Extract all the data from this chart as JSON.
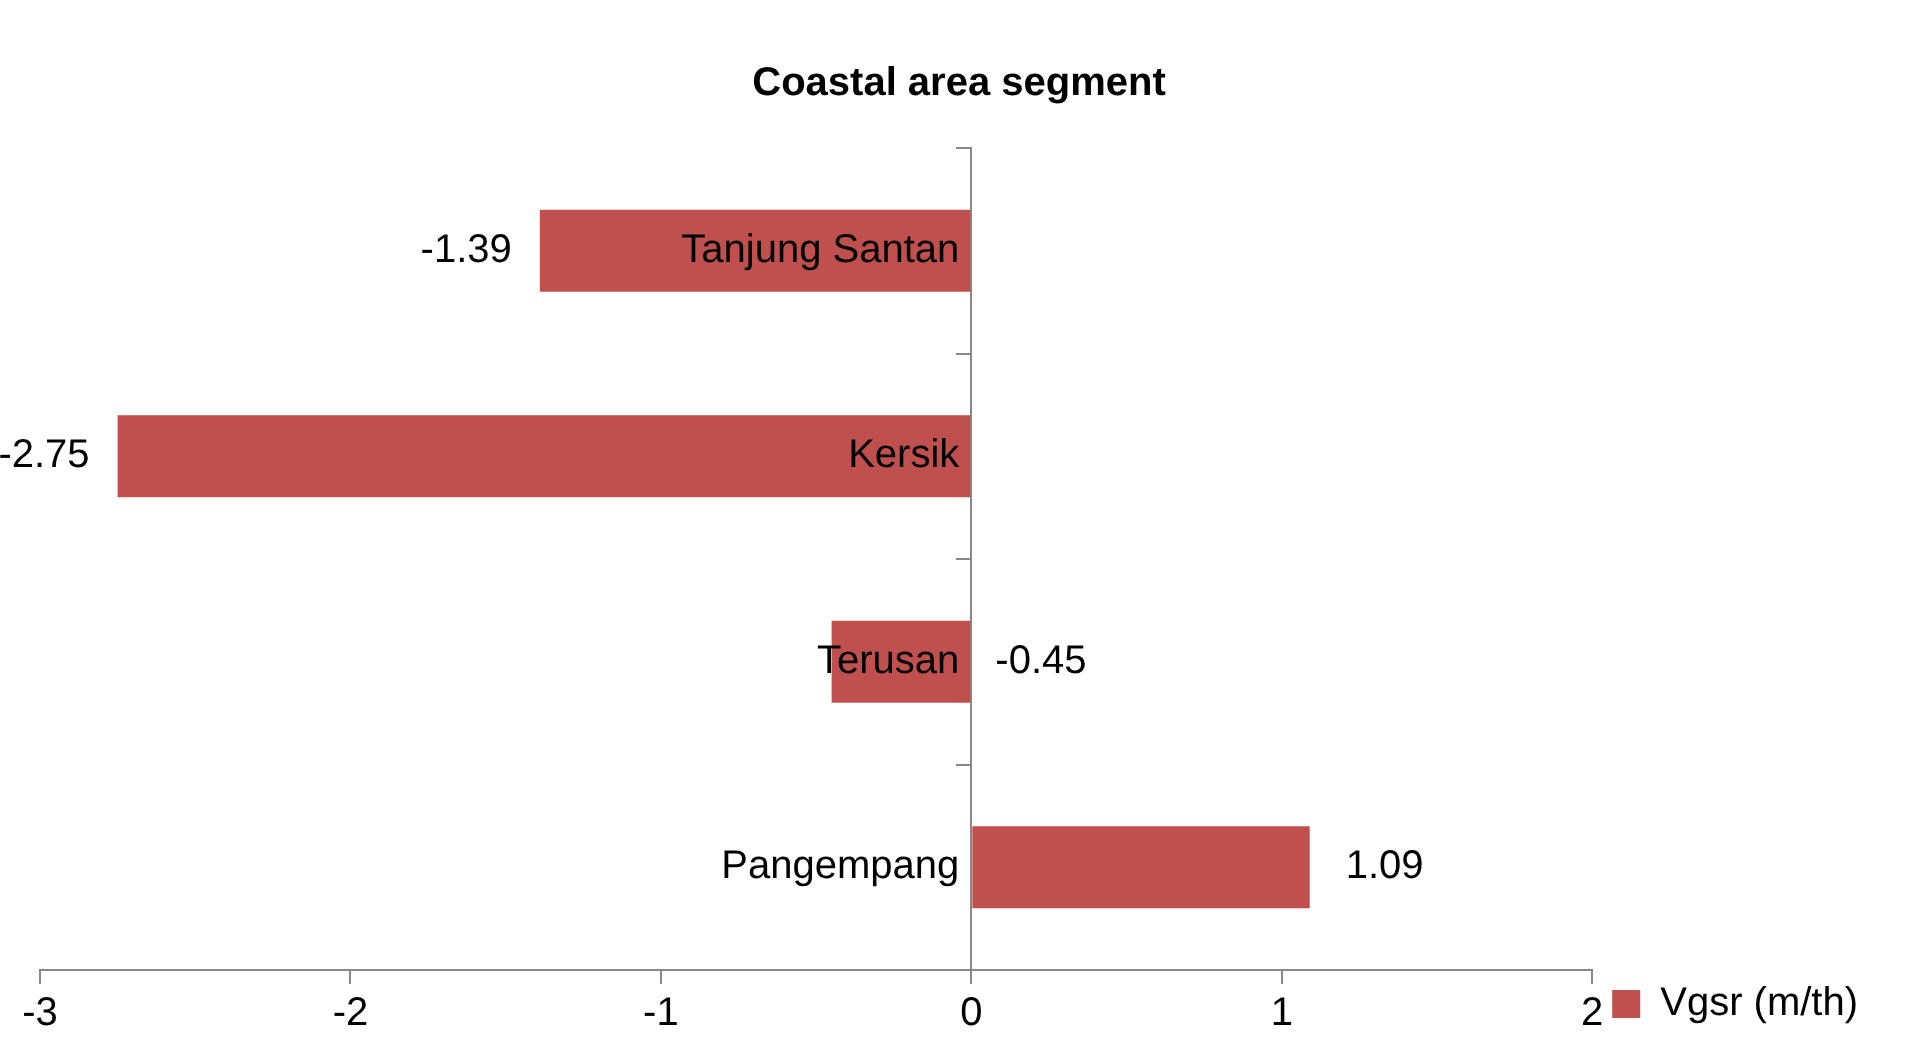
{
  "chart_data": {
    "type": "bar",
    "orientation": "horizontal",
    "title": "Coastal area segment",
    "categories": [
      "Tanjung Santan",
      "Kersik",
      "Terusan",
      "Pangempang"
    ],
    "series": [
      {
        "name": "Vgsr (m/th)",
        "color": "#c0504d",
        "values": [
          -1.39,
          -2.75,
          -0.45,
          1.09
        ]
      }
    ],
    "xlim": [
      -3,
      2
    ],
    "xticks": [
      -3,
      -2,
      -1,
      0,
      1,
      2
    ],
    "grid": false,
    "legend": "right",
    "data_labels": true
  }
}
